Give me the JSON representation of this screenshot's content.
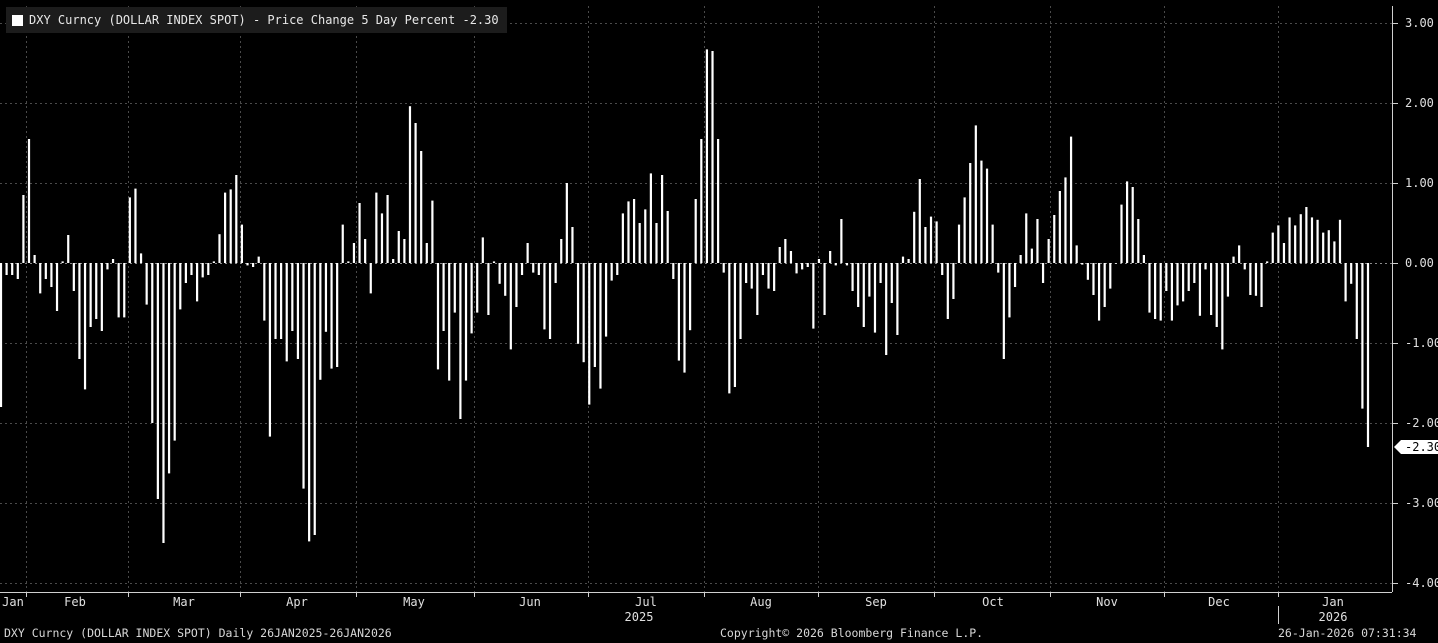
{
  "legend": {
    "label": "DXY Curncy (DOLLAR INDEX SPOT) - Price Change 5 Day Percent -2.30"
  },
  "footer": {
    "left": "DXY Curncy (DOLLAR INDEX SPOT) Daily 26JAN2025-26JAN2026",
    "center": "Copyright© 2026 Bloomberg Finance L.P.",
    "right": "26-Jan-2026 07:31:34"
  },
  "chart_data": {
    "type": "bar",
    "ylim": [
      -4,
      3.2
    ],
    "y_ticks": [
      "3.00",
      "2.00",
      "1.00",
      "0.00",
      "-1.00",
      "-2.00",
      "-3.00",
      "-4.00"
    ],
    "last_value_label": "-2.30",
    "last_value": -2.3,
    "x_month_labels": [
      "Jan",
      "Feb",
      "Mar",
      "Apr",
      "May",
      "Jun",
      "Jul",
      "Aug",
      "Sep",
      "Oct",
      "Nov",
      "Dec",
      "Jan"
    ],
    "x_year_labels": [
      "2025",
      "2026"
    ],
    "grid": true,
    "colors": {
      "background": "#000000",
      "bars": "#ffffff",
      "grid": "#4a4a4a",
      "legend_bg": "#1c1c1c"
    },
    "values": [
      -1.8,
      -0.15,
      -0.15,
      -0.2,
      0.85,
      1.55,
      0.1,
      -0.38,
      -0.2,
      -0.3,
      -0.6,
      0.02,
      0.35,
      -0.35,
      -1.2,
      -1.58,
      -0.8,
      -0.7,
      -0.85,
      -0.08,
      0.05,
      -0.68,
      -0.68,
      0.82,
      0.93,
      0.12,
      -0.52,
      -2.0,
      -2.95,
      -3.5,
      -2.63,
      -2.22,
      -0.58,
      -0.25,
      -0.15,
      -0.48,
      -0.18,
      -0.15,
      0.02,
      0.36,
      0.88,
      0.92,
      1.1,
      0.48,
      -0.03,
      -0.05,
      0.08,
      -0.72,
      -2.17,
      -0.95,
      -0.95,
      -1.23,
      -0.85,
      -1.2,
      -2.82,
      -3.48,
      -3.4,
      -1.46,
      -0.86,
      -1.32,
      -1.3,
      0.48,
      0.02,
      0.25,
      0.75,
      0.3,
      -0.38,
      0.88,
      0.62,
      0.85,
      0.05,
      0.4,
      0.3,
      1.96,
      1.75,
      1.4,
      0.25,
      0.78,
      -1.33,
      -0.85,
      -1.47,
      -0.62,
      -1.95,
      -1.47,
      -0.88,
      -0.62,
      0.32,
      -0.65,
      0.02,
      -0.26,
      -0.41,
      -1.08,
      -0.55,
      -0.15,
      0.25,
      -0.12,
      -0.15,
      -0.83,
      -0.95,
      -0.25,
      0.3,
      1.0,
      0.45,
      -1.01,
      -1.24,
      -1.77,
      -1.3,
      -1.57,
      -0.92,
      -0.22,
      -0.15,
      0.62,
      0.77,
      0.8,
      0.5,
      0.67,
      1.12,
      0.5,
      1.1,
      0.65,
      -0.2,
      -1.22,
      -1.37,
      -0.84,
      0.8,
      1.55,
      2.67,
      2.65,
      1.55,
      -0.12,
      -1.63,
      -1.55,
      -0.95,
      -0.25,
      -0.32,
      -0.65,
      -0.15,
      -0.32,
      -0.35,
      0.2,
      0.3,
      0.15,
      -0.13,
      -0.08,
      -0.05,
      -0.82,
      0.05,
      -0.65,
      0.15,
      -0.03,
      0.55,
      -0.03,
      -0.35,
      -0.55,
      -0.8,
      -0.42,
      -0.87,
      -0.25,
      -1.15,
      -0.5,
      -0.9,
      0.08,
      0.05,
      0.64,
      1.05,
      0.45,
      0.58,
      0.52,
      -0.15,
      -0.7,
      -0.45,
      0.48,
      0.82,
      1.25,
      1.72,
      1.28,
      1.18,
      0.48,
      -0.12,
      -1.2,
      -0.68,
      -0.3,
      0.1,
      0.62,
      0.18,
      0.55,
      -0.25,
      0.3,
      0.6,
      0.9,
      1.07,
      1.58,
      0.22,
      -0.02,
      -0.21,
      -0.4,
      -0.72,
      -0.55,
      -0.32,
      0.0,
      0.73,
      1.02,
      0.95,
      0.55,
      0.1,
      -0.62,
      -0.7,
      -0.72,
      -0.35,
      -0.72,
      -0.53,
      -0.48,
      -0.35,
      -0.25,
      -0.66,
      -0.08,
      -0.65,
      -0.8,
      -1.08,
      -0.42,
      0.08,
      0.22,
      -0.08,
      -0.4,
      -0.41,
      -0.55,
      0.02,
      0.38,
      0.47,
      0.25,
      0.57,
      0.47,
      0.61,
      0.7,
      0.57,
      0.54,
      0.38,
      0.41,
      0.27,
      0.54,
      -0.48,
      -0.26,
      -0.95,
      -1.82,
      -2.3
    ]
  }
}
